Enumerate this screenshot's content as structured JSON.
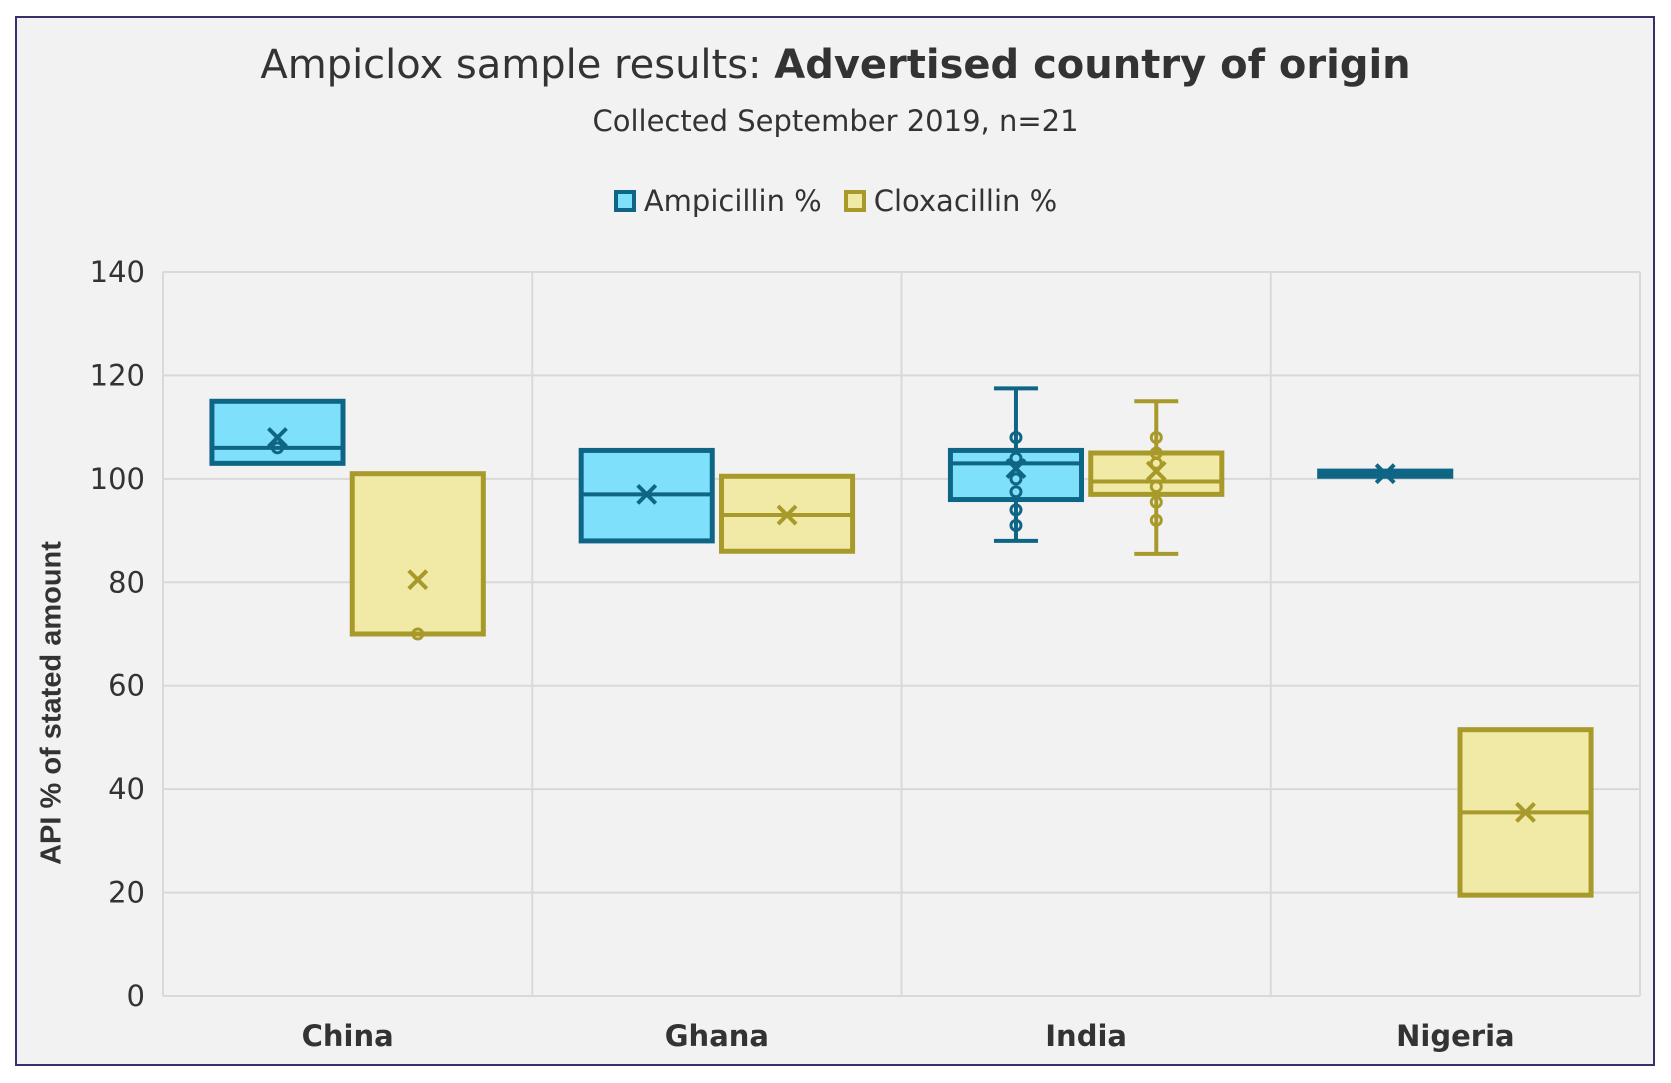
{
  "title": {
    "prefix": "Ampiclox sample results: ",
    "bold": "Advertised country of origin"
  },
  "subtitle": "Collected September 2019, n=21",
  "colors": {
    "ampicillin_stroke": "#0f6585",
    "ampicillin_fill": "#7fe0fc",
    "cloxacillin_stroke": "#a89a2a",
    "cloxacillin_fill": "#f1e9a6",
    "grid": "#d9d9d9",
    "frame": "#3b2f6b",
    "background": "#f2f2f2"
  },
  "chart_data": {
    "type": "box",
    "title": "Ampiclox sample results: Advertised country of origin",
    "subtitle": "Collected September 2019, n=21",
    "ylabel": "API % of stated amount",
    "xlabel": "",
    "ylim": [
      0,
      140
    ],
    "yticks": [
      0,
      20,
      40,
      60,
      80,
      100,
      120,
      140
    ],
    "grid": true,
    "legend_position": "top",
    "categories": [
      "China",
      "Ghana",
      "India",
      "Nigeria"
    ],
    "series": [
      {
        "name": "Ampicillin %",
        "boxes": [
          {
            "category": "China",
            "min": 103,
            "q1": 103,
            "median": 106,
            "q3": 115,
            "max": 115,
            "mean": 108,
            "points": [
              106
            ]
          },
          {
            "category": "Ghana",
            "min": 88,
            "q1": 88,
            "median": 97,
            "q3": 105.5,
            "max": 105.5,
            "mean": 97,
            "points": []
          },
          {
            "category": "India",
            "min": 88,
            "q1": 96,
            "median": 103,
            "q3": 105.5,
            "max": 117.5,
            "mean": 102,
            "points": [
              91,
              94,
              97.5,
              100,
              104,
              108
            ]
          },
          {
            "category": "Nigeria",
            "min": 100.5,
            "q1": 100.5,
            "median": 101,
            "q3": 101.5,
            "max": 101.5,
            "mean": 101,
            "points": []
          }
        ]
      },
      {
        "name": "Cloxacillin %",
        "boxes": [
          {
            "category": "China",
            "min": 70,
            "q1": 70,
            "median": 101,
            "q3": 101,
            "max": 101,
            "mean": 80.5,
            "points": [
              70
            ]
          },
          {
            "category": "Ghana",
            "min": 86,
            "q1": 86,
            "median": 93,
            "q3": 100.5,
            "max": 100.5,
            "mean": 93,
            "points": []
          },
          {
            "category": "India",
            "min": 85.5,
            "q1": 97,
            "median": 99.5,
            "q3": 105,
            "max": 115,
            "mean": 101.5,
            "points": [
              92,
              95.5,
              98.5,
              103,
              105,
              108
            ]
          },
          {
            "category": "Nigeria",
            "min": 19.5,
            "q1": 19.5,
            "median": 35.5,
            "q3": 51.5,
            "max": 51.5,
            "mean": 35.5,
            "points": []
          }
        ]
      }
    ]
  }
}
